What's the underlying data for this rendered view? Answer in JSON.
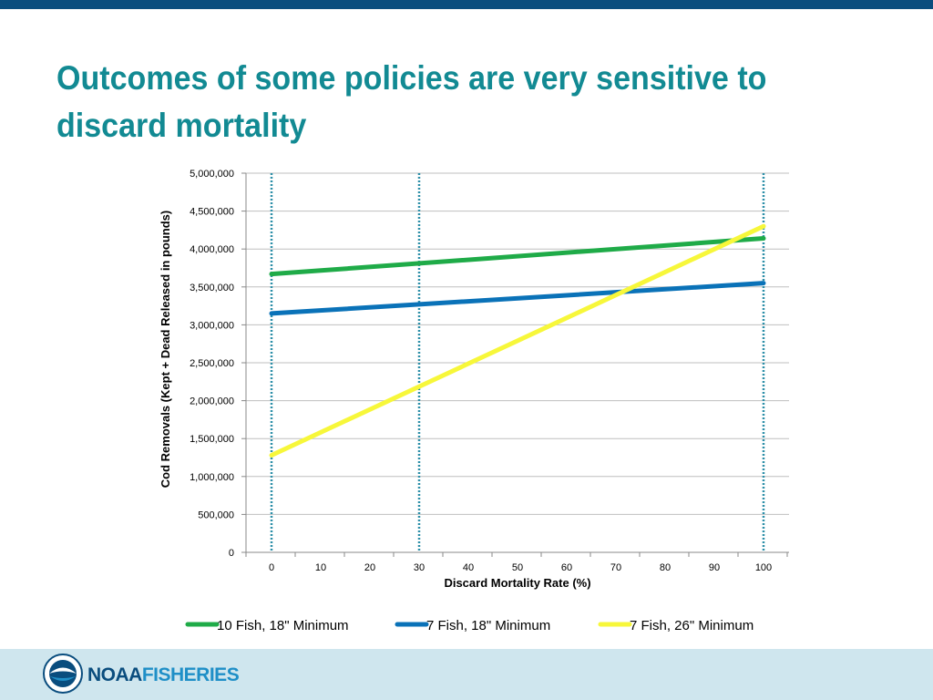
{
  "slide": {
    "title": "Outcomes of some policies are very sensitive to discard mortality"
  },
  "footer": {
    "logo_text_1": "NOAA",
    "logo_text_2": "FISHERIES"
  },
  "colors": {
    "top_bar": "#0a4d7e",
    "title": "#128a93",
    "footer": "#cfe6ee",
    "gridline": "#bfbfbf",
    "reference_line": "#2d8fa8"
  },
  "chart_data": {
    "type": "line",
    "title": "",
    "xlabel": "Discard Mortality Rate (%)",
    "ylabel": "Cod Removals (Kept + Dead Released in pounds)",
    "xlim": [
      0,
      100
    ],
    "ylim": [
      0,
      5000000
    ],
    "x_ticks": [
      0,
      10,
      20,
      30,
      40,
      50,
      60,
      70,
      80,
      90,
      100
    ],
    "y_ticks": [
      0,
      500000,
      1000000,
      1500000,
      2000000,
      2500000,
      3000000,
      3500000,
      4000000,
      4500000,
      5000000
    ],
    "y_tick_labels": [
      "0",
      "500,000",
      "1,000,000",
      "1,500,000",
      "2,000,000",
      "2,500,000",
      "3,000,000",
      "3,500,000",
      "4,000,000",
      "4,500,000",
      "5,000,000"
    ],
    "grid": true,
    "reference_lines_x": [
      0,
      30,
      100
    ],
    "legend_position": "bottom",
    "series": [
      {
        "name": "10 Fish, 18\" Minimum",
        "color": "#1fab48",
        "x": [
          0,
          100
        ],
        "y": [
          3670000,
          4140000
        ]
      },
      {
        "name": "7 Fish, 18\" Minimum",
        "color": "#0a72b8",
        "x": [
          0,
          100
        ],
        "y": [
          3150000,
          3550000
        ]
      },
      {
        "name": "7 Fish, 26\" Minimum",
        "color": "#f7f73a",
        "x": [
          0,
          100
        ],
        "y": [
          1280000,
          4300000
        ]
      }
    ]
  }
}
